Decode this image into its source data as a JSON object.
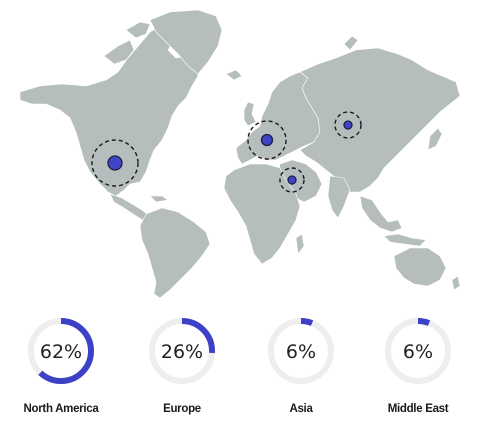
{
  "colors": {
    "land": "#b5bdbd",
    "marker": "#3f44c9",
    "gauge_fill": "#3d41c6",
    "gauge_track": "#eeeeee"
  },
  "regions": [
    {
      "name": "North America",
      "percent": 62,
      "percent_label": "62%"
    },
    {
      "name": "Europe",
      "percent": 26,
      "percent_label": "26%"
    },
    {
      "name": "Asia",
      "percent": 6,
      "percent_label": "6%"
    },
    {
      "name": "Middle East",
      "percent": 6,
      "percent_label": "6%"
    }
  ]
}
